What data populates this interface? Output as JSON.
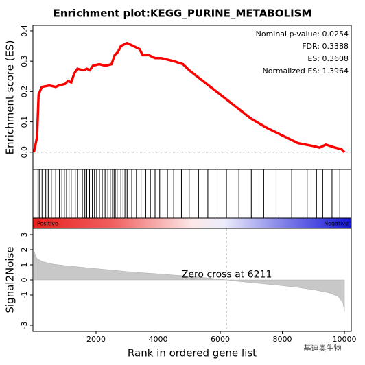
{
  "chart_data": [
    {
      "type": "line",
      "title": "Enrichment plot:KEGG_PURINE_METABOLISM",
      "y_label": "Enrichment score (ES)",
      "annotations": [
        "Nominal p-value: 0.0254",
        "FDR: 0.3388",
        "ES: 0.3608",
        "Normalized ES: 1.3964"
      ],
      "color": "#ff0000",
      "x": [
        0,
        100,
        150,
        250,
        500,
        700,
        800,
        1000,
        1100,
        1200,
        1300,
        1400,
        1600,
        1700,
        1800,
        1900,
        2100,
        2300,
        2500,
        2600,
        2700,
        2800,
        2900,
        3000,
        3200,
        3400,
        3500,
        3700,
        3900,
        4100,
        4300,
        4500,
        4800,
        5000,
        5500,
        6000,
        6500,
        7000,
        7500,
        8000,
        8500,
        9000,
        9200,
        9400,
        9700,
        9900,
        10000
      ],
      "values": [
        0,
        0.05,
        0.19,
        0.215,
        0.22,
        0.215,
        0.22,
        0.225,
        0.235,
        0.23,
        0.26,
        0.275,
        0.27,
        0.275,
        0.27,
        0.285,
        0.29,
        0.285,
        0.29,
        0.32,
        0.33,
        0.35,
        0.355,
        0.36,
        0.35,
        0.34,
        0.32,
        0.32,
        0.31,
        0.31,
        0.305,
        0.3,
        0.29,
        0.27,
        0.23,
        0.19,
        0.15,
        0.11,
        0.08,
        0.055,
        0.03,
        0.02,
        0.015,
        0.025,
        0.015,
        0.01,
        0
      ],
      "xlim": [
        -33,
        10220
      ],
      "ylim": [
        -0.057,
        0.418
      ],
      "yticks": [
        {
          "value": 0,
          "label": "0.0"
        },
        0.1,
        0.2,
        0.3,
        0.4
      ]
    },
    {
      "type": "rug",
      "labels": [
        "Positive",
        "Negative"
      ],
      "xlim": [
        -33,
        10220
      ],
      "hits": [
        130,
        170,
        260,
        380,
        460,
        560,
        700,
        820,
        900,
        980,
        1050,
        1130,
        1200,
        1260,
        1330,
        1400,
        1480,
        1560,
        1640,
        1700,
        1790,
        1880,
        1950,
        2020,
        2110,
        2200,
        2290,
        2380,
        2460,
        2530,
        2580,
        2620,
        2680,
        2740,
        2800,
        2870,
        2930,
        3000,
        3150,
        3300,
        3450,
        3600,
        3750,
        3900,
        4050,
        4300,
        4500,
        4750,
        5000,
        5300,
        5600,
        5900,
        6200,
        6600,
        7000,
        7400,
        7800,
        8300,
        8800,
        9100,
        9300,
        9600,
        9850
      ]
    },
    {
      "type": "area",
      "y_label": "Signal2Noise",
      "x_label": "Rank in ordered gene list",
      "annotation": "Zero cross at 6211",
      "zero_cross": 6211,
      "color": "#c8c8c8",
      "x": [
        0,
        100,
        300,
        600,
        1000,
        1500,
        2000,
        2500,
        3000,
        3500,
        4000,
        4500,
        5000,
        5500,
        6000,
        6211,
        6500,
        7000,
        7500,
        8000,
        8500,
        9000,
        9500,
        9800,
        9950,
        10000
      ],
      "values": [
        1.9,
        1.4,
        1.2,
        1.05,
        0.95,
        0.85,
        0.75,
        0.65,
        0.55,
        0.47,
        0.4,
        0.32,
        0.24,
        0.15,
        0.05,
        0,
        -0.08,
        -0.18,
        -0.28,
        -0.38,
        -0.5,
        -0.65,
        -0.85,
        -1.1,
        -1.5,
        -2.1
      ],
      "xlim": [
        -33,
        10220
      ],
      "ylim": [
        -3.41,
        3.41
      ],
      "xticks": [
        2000,
        4000,
        6000,
        8000,
        10000
      ],
      "yticks": [
        3,
        2,
        1,
        0,
        -1,
        -3
      ]
    },
    {
      "type": "watermark",
      "text": "基迪奥生物"
    }
  ]
}
